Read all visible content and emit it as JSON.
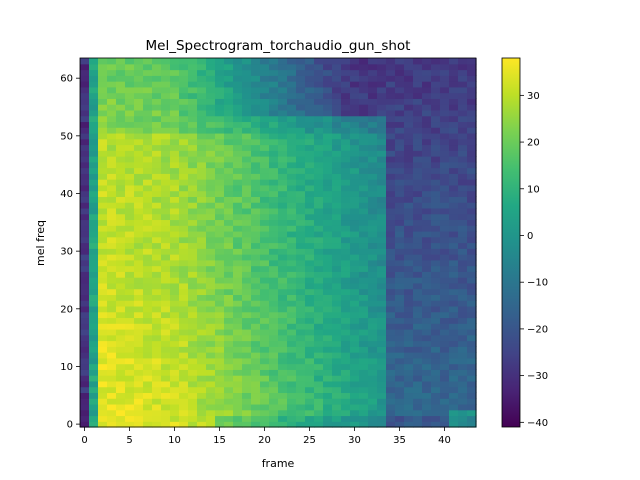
{
  "chart_data": {
    "type": "heatmap",
    "title": "Mel_Spectrogram_torchaudio_gun_shot",
    "xlabel": "frame",
    "ylabel": "mel freq",
    "x_range": [
      -0.5,
      43.5
    ],
    "y_range": [
      -0.5,
      63.5
    ],
    "x_ticks": [
      0,
      5,
      10,
      15,
      20,
      25,
      30,
      35,
      40
    ],
    "y_ticks": [
      0,
      10,
      20,
      30,
      40,
      50,
      60
    ],
    "colorbar": {
      "colormap": "viridis",
      "range": [
        -41,
        38
      ],
      "ticks": [
        30,
        20,
        10,
        0,
        -10,
        -20,
        -30,
        -40
      ],
      "tick_labels": [
        "30",
        "20",
        "10",
        "0",
        "−10",
        "−20",
        "−30",
        "−40"
      ]
    },
    "grid": false,
    "value_description": {
      "frames": 44,
      "mel_bins": 64,
      "frame_0": -30,
      "frame_1": 5,
      "peak_frames": [
        2,
        10
      ],
      "peak_value_low_freq": 36,
      "peak_value_mid_freq": 32,
      "peak_value_high_freq": 24,
      "decay_tail_value": -8,
      "boundary_frame": 33.5
    }
  }
}
